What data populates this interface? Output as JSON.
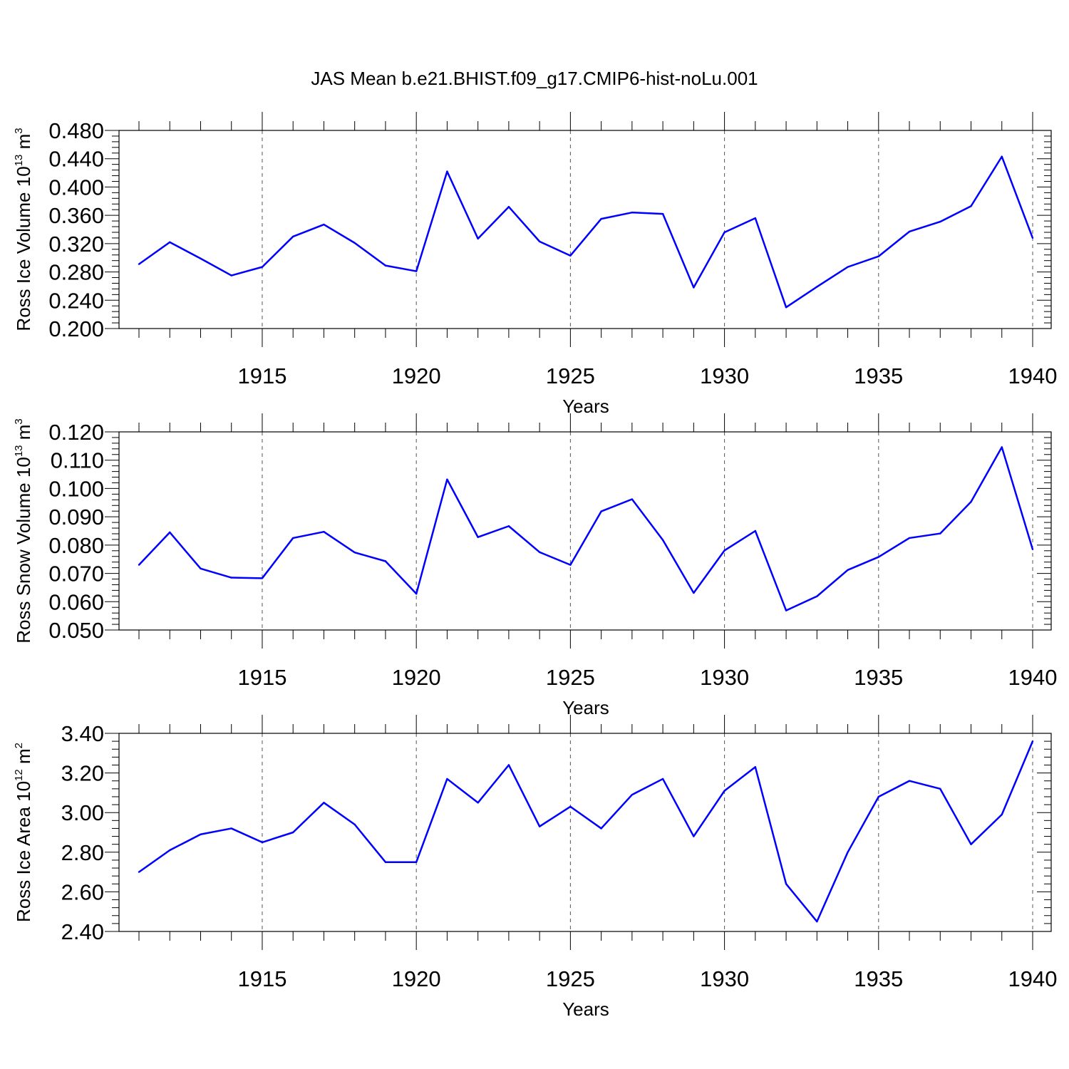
{
  "title": "JAS Mean b.e21.BHIST.f09_g17.CMIP6-hist-noLu.001",
  "chart_data": [
    {
      "type": "line",
      "ylabel": "Ross Ice Volume 10",
      "ylabel_exp": "13",
      "ylabel_unit": " m",
      "ylabel_unit_exp": "3",
      "xlabel": "Years",
      "xlim": [
        1911,
        1940
      ],
      "ylim": [
        0.2,
        0.48
      ],
      "yticks": [
        "0.200",
        "0.240",
        "0.280",
        "0.320",
        "0.360",
        "0.400",
        "0.440",
        "0.480"
      ],
      "xticks": [
        "1915",
        "1920",
        "1925",
        "1930",
        "1935",
        "1940"
      ],
      "series": [
        {
          "color": "#0000ff",
          "x": [
            1911,
            1912,
            1913,
            1914,
            1915,
            1916,
            1917,
            1918,
            1919,
            1920,
            1921,
            1922,
            1923,
            1924,
            1925,
            1926,
            1927,
            1928,
            1929,
            1930,
            1931,
            1932,
            1933,
            1934,
            1935,
            1936,
            1937,
            1938,
            1939,
            1940
          ],
          "values": [
            0.291,
            0.322,
            0.299,
            0.275,
            0.287,
            0.33,
            0.347,
            0.321,
            0.289,
            0.281,
            0.422,
            0.327,
            0.372,
            0.323,
            0.303,
            0.355,
            0.364,
            0.362,
            0.258,
            0.336,
            0.356,
            0.23,
            0.259,
            0.287,
            0.302,
            0.337,
            0.351,
            0.373,
            0.443,
            0.328
          ]
        }
      ]
    },
    {
      "type": "line",
      "ylabel": "Ross Snow Volume 10",
      "ylabel_exp": "13",
      "ylabel_unit": " m",
      "ylabel_unit_exp": "3",
      "xlabel": "Years",
      "xlim": [
        1911,
        1940
      ],
      "ylim": [
        0.05,
        0.12
      ],
      "yticks": [
        "0.050",
        "0.060",
        "0.070",
        "0.080",
        "0.090",
        "0.100",
        "0.110",
        "0.120"
      ],
      "xticks": [
        "1915",
        "1920",
        "1925",
        "1930",
        "1935",
        "1940"
      ],
      "series": [
        {
          "color": "#0000ff",
          "x": [
            1911,
            1912,
            1913,
            1914,
            1915,
            1916,
            1917,
            1918,
            1919,
            1920,
            1921,
            1922,
            1923,
            1924,
            1925,
            1926,
            1927,
            1928,
            1929,
            1930,
            1931,
            1932,
            1933,
            1934,
            1935,
            1936,
            1937,
            1938,
            1939,
            1940
          ],
          "values": [
            0.073,
            0.0845,
            0.0717,
            0.0685,
            0.0683,
            0.0825,
            0.0847,
            0.0774,
            0.0743,
            0.0628,
            0.1032,
            0.0828,
            0.0867,
            0.0775,
            0.073,
            0.0919,
            0.0962,
            0.0818,
            0.0631,
            0.0781,
            0.085,
            0.0569,
            0.0619,
            0.0712,
            0.0758,
            0.0825,
            0.0841,
            0.0953,
            0.1146,
            0.0785
          ]
        }
      ]
    },
    {
      "type": "line",
      "ylabel": "Ross Ice Area 10",
      "ylabel_exp": "12",
      "ylabel_unit": " m",
      "ylabel_unit_exp": "2",
      "xlabel": "Years",
      "xlim": [
        1911,
        1940
      ],
      "ylim": [
        2.4,
        3.4
      ],
      "yticks": [
        "2.40",
        "2.60",
        "2.80",
        "3.00",
        "3.20",
        "3.40"
      ],
      "xticks": [
        "1915",
        "1920",
        "1925",
        "1930",
        "1935",
        "1940"
      ],
      "series": [
        {
          "color": "#0000ff",
          "x": [
            1911,
            1912,
            1913,
            1914,
            1915,
            1916,
            1917,
            1918,
            1919,
            1920,
            1921,
            1922,
            1923,
            1924,
            1925,
            1926,
            1927,
            1928,
            1929,
            1930,
            1931,
            1932,
            1933,
            1934,
            1935,
            1936,
            1937,
            1938,
            1939,
            1940
          ],
          "values": [
            2.7,
            2.81,
            2.89,
            2.92,
            2.85,
            2.9,
            3.05,
            2.94,
            2.75,
            2.75,
            3.17,
            3.05,
            3.24,
            2.93,
            3.03,
            2.92,
            3.09,
            3.17,
            2.88,
            3.11,
            3.23,
            2.64,
            2.45,
            2.8,
            3.08,
            3.16,
            3.12,
            2.84,
            2.99,
            3.36
          ]
        }
      ]
    }
  ]
}
